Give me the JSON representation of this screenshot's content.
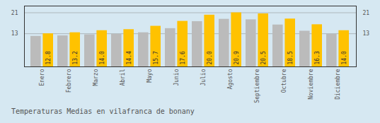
{
  "chart_data": {
    "type": "bar",
    "title": "Temperaturas Medias en vilafranca de bonany",
    "categories": [
      "Enero",
      "Febrero",
      "Marzo",
      "Abril",
      "Mayo",
      "Junio",
      "Julio",
      "Agosto",
      "Septiembre",
      "Octubre",
      "Noviembre",
      "Diciembre"
    ],
    "series": [
      {
        "color": "#BBBBBB",
        "values": [
          11.8,
          12.0,
          12.4,
          12.6,
          13.2,
          14.8,
          17.5,
          18.4,
          18.2,
          16.2,
          13.8,
          12.6
        ]
      },
      {
        "color": "#FFC200",
        "values": [
          12.8,
          13.2,
          14.0,
          14.4,
          15.7,
          17.6,
          20.0,
          20.9,
          20.5,
          18.5,
          16.3,
          14.0
        ],
        "data_labels": true,
        "value_labels": [
          "12.8",
          "13.2",
          "14.0",
          "14.4",
          "15.7",
          "17.6",
          "20.0",
          "20.9",
          "20.5",
          "18.5",
          "16.3",
          "14.0"
        ]
      }
    ],
    "ylim": [
      0,
      23.5
    ],
    "yticks": [
      12.8,
      20.9
    ],
    "grid": true
  }
}
